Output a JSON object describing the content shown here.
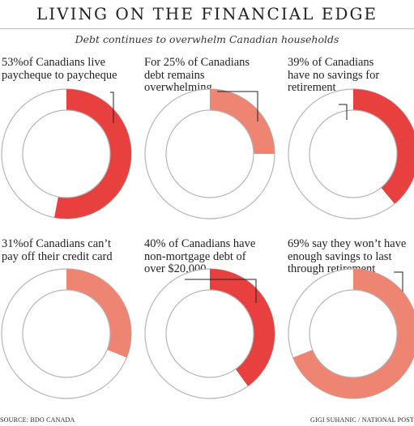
{
  "header": {
    "title": "LIVING ON THE FINANCIAL EDGE",
    "subtitle": "Debt continues to overwhelm Canadian households"
  },
  "colors": {
    "strong": "#e8403f",
    "light": "#ee8472",
    "empty_fill": "#ffffff",
    "outline": "#b5b5b5",
    "leader": "#222222"
  },
  "chart_data": [
    {
      "type": "pie",
      "caption": "53%of Canadians live\npaycheque to paycheque",
      "values": [
        53,
        47
      ],
      "color": "strong"
    },
    {
      "type": "pie",
      "caption": "For 25% of Canadians\ndebt remains\noverwhelming",
      "values": [
        25,
        75
      ],
      "color": "light"
    },
    {
      "type": "pie",
      "caption": "39% of Canadians\nhave no savings for\nretirement",
      "values": [
        39,
        61
      ],
      "color": "strong"
    },
    {
      "type": "pie",
      "caption": "31%of Canadians can’t\npay off their credit card",
      "values": [
        31,
        69
      ],
      "color": "light"
    },
    {
      "type": "pie",
      "caption": "40% of Canadians have\nnon-mortgage debt of\nover $20,000",
      "values": [
        40,
        60
      ],
      "color": "strong"
    },
    {
      "type": "pie",
      "caption": "69% say they won’t have\nenough savings to last\nthrough retirement",
      "values": [
        69,
        31
      ],
      "color": "light"
    }
  ],
  "footer": {
    "source": "SOURCE: BDO CANADA",
    "credit": "GIGI SUHANIC / NATIONAL POST"
  }
}
